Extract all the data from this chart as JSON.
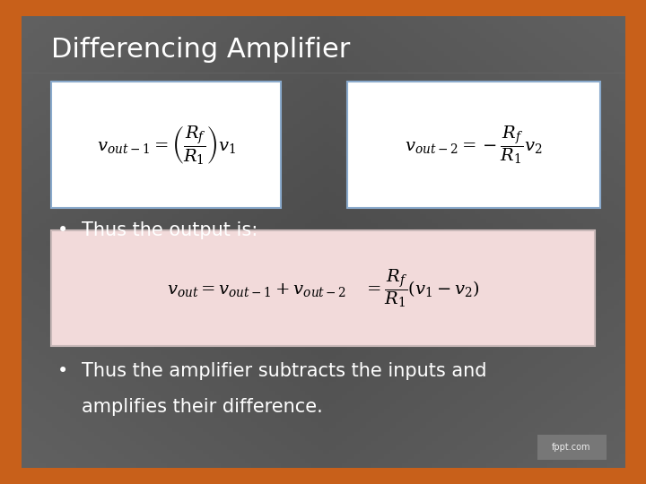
{
  "title": "Differencing Amplifier",
  "title_fontsize": 22,
  "title_color": "#ffffff",
  "bg_color": "#4a4a4a",
  "border_color": "#c8601a",
  "border_width": 18,
  "box1_eq": "$v_{out-1} = \\left(\\dfrac{R_f}{R_1}\\right)v_1$",
  "box2_eq": "$v_{out-2} = -\\dfrac{R_f}{R_1}v_2$",
  "box3_eq": "$v_{out} = v_{out-1} + v_{out-2}\\quad = \\dfrac{R_f}{R_1}\\left(v_1 - v_2\\right)$",
  "bullet1": "Thus the output is:",
  "bullet2_line1": "Thus the amplifier subtracts the inputs and",
  "bullet2_line2": "amplifies their difference.",
  "eq_fontsize": 14,
  "bullet_fontsize": 15,
  "box1_bg": "#ffffff",
  "box2_bg": "#ffffff",
  "box3_bg": "#f2dada",
  "box1_border": "#8aaacc",
  "box2_border": "#8aaacc",
  "box3_border": "#c8b8b8",
  "eq_color": "#000000",
  "bullet_color": "#ffffff",
  "fppt_bg": "#888888",
  "fppt_color": "#eeeeee",
  "fppt_text": "fppt.com",
  "inner_bg_color": "#505050"
}
